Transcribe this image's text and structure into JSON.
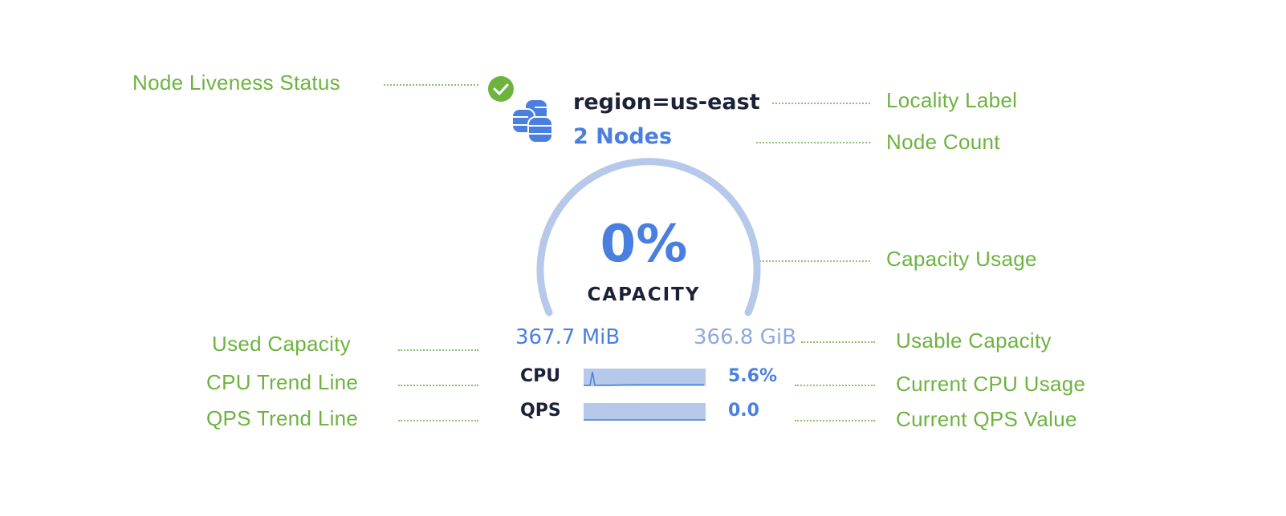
{
  "component": {
    "locality": "region=us-east",
    "node_count": "2 Nodes",
    "liveness": "live",
    "capacity_percent": "0%",
    "capacity_label": "CAPACITY",
    "used_capacity": "367.7 MiB",
    "usable_capacity": "366.8 GiB",
    "cpu_label": "CPU",
    "cpu_value": "5.6%",
    "qps_label": "QPS",
    "qps_value": "0.0",
    "accent_color": "#4a7fe0",
    "live_color": "#6db33f"
  },
  "annotations": {
    "liveness": "Node Liveness Status",
    "locality": "Locality Label",
    "node_count": "Node Count",
    "capacity_usage": "Capacity Usage",
    "used_capacity": "Used Capacity",
    "usable_capacity": "Usable Capacity",
    "cpu_trend": "CPU Trend Line",
    "cpu_current": "Current CPU Usage",
    "qps_trend": "QPS Trend Line",
    "qps_current": "Current QPS Value"
  }
}
